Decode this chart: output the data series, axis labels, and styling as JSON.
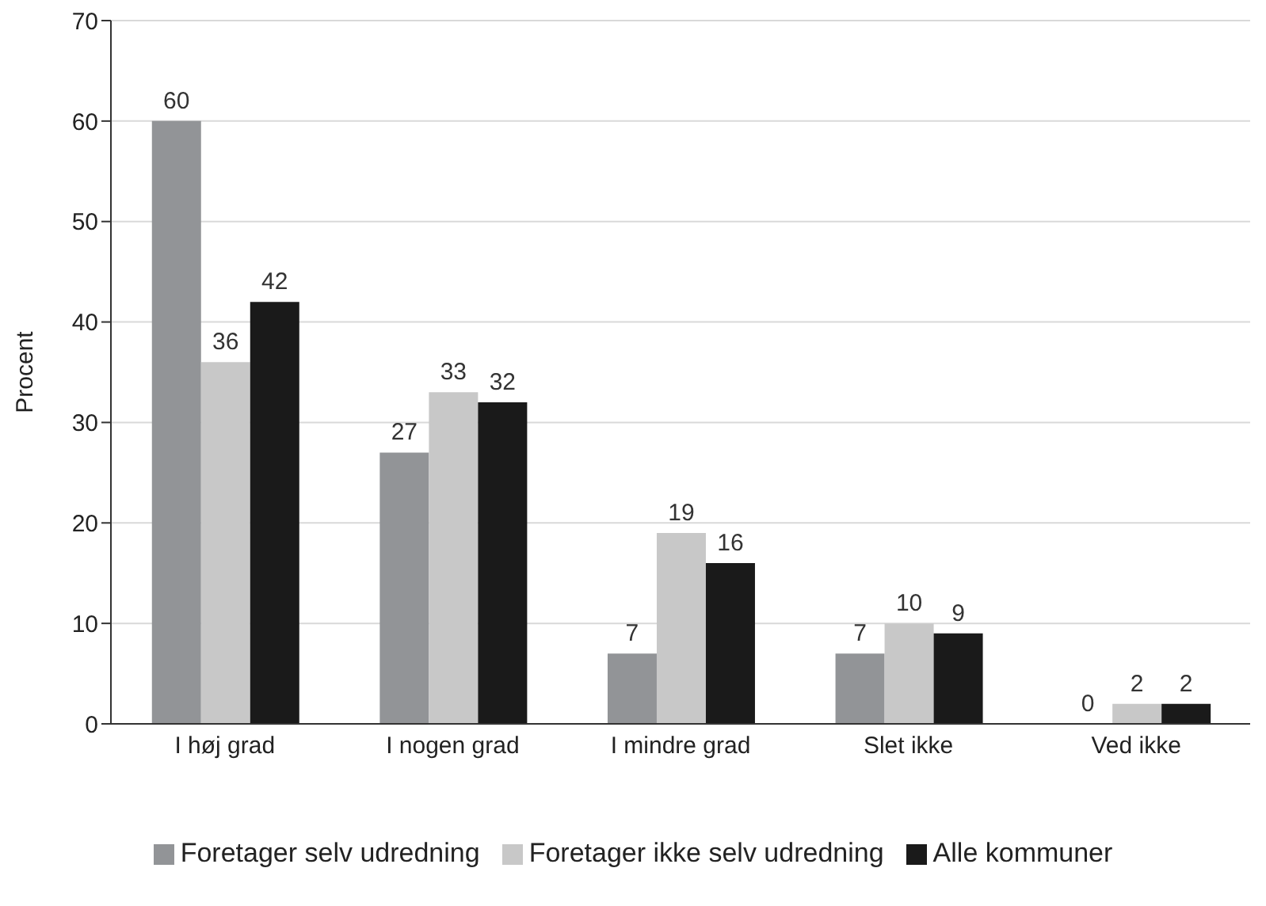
{
  "chart_data": {
    "type": "bar",
    "ylabel": "Procent",
    "categories": [
      "I høj grad",
      "I nogen grad",
      "I mindre grad",
      "Slet ikke",
      "Ved ikke"
    ],
    "series": [
      {
        "name": "Foretager selv udredning",
        "color": "#929497",
        "values": [
          60,
          27,
          7,
          7,
          0
        ]
      },
      {
        "name": "Foretager ikke selv udredning",
        "color": "#c8c8c8",
        "values": [
          36,
          33,
          19,
          10,
          2
        ]
      },
      {
        "name": "Alle kommuner",
        "color": "#1a1a1a",
        "values": [
          42,
          32,
          16,
          9,
          2
        ]
      }
    ],
    "ylim": [
      0,
      70
    ],
    "yticks": [
      0,
      10,
      20,
      30,
      40,
      50,
      60,
      70
    ],
    "grid": "y",
    "legend": "bottom",
    "data_labels": true
  }
}
